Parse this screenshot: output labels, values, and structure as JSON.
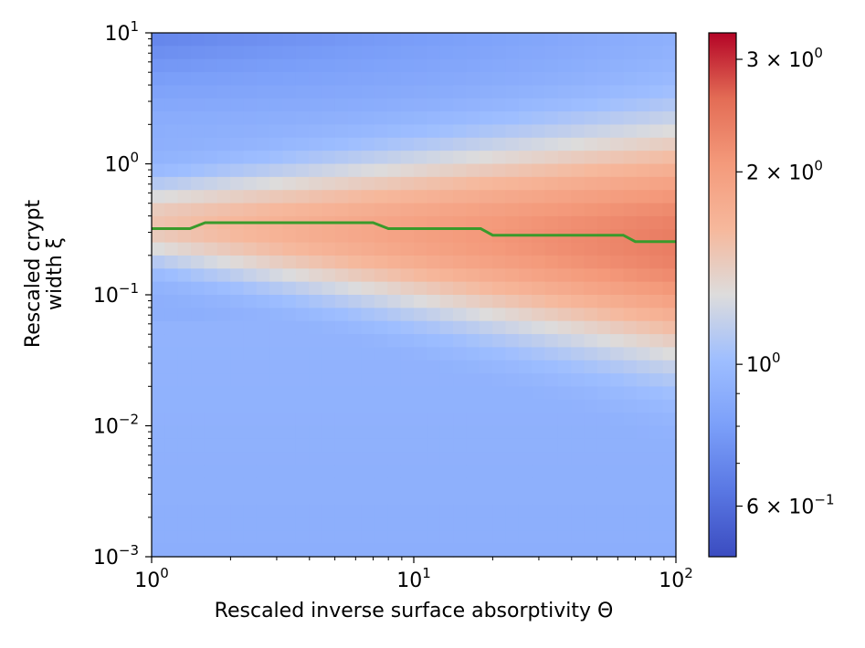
{
  "chart_data": {
    "type": "heatmap",
    "title": "",
    "xlabel": "Rescaled inverse surface absorptivity Θ",
    "ylabel_line1": "Rescaled crypt",
    "ylabel_line2": "width ξ",
    "x_scale": "log",
    "y_scale": "log",
    "xlim": [
      1,
      100
    ],
    "ylim": [
      0.001,
      10
    ],
    "x_ticks": [
      {
        "value": 1,
        "mantissa": "10",
        "exponent": "0"
      },
      {
        "value": 10,
        "mantissa": "10",
        "exponent": "1"
      },
      {
        "value": 100,
        "mantissa": "10",
        "exponent": "2"
      }
    ],
    "y_ticks": [
      {
        "value": 0.001,
        "mantissa": "10",
        "exponent": "−3"
      },
      {
        "value": 0.01,
        "mantissa": "10",
        "exponent": "−2"
      },
      {
        "value": 0.1,
        "mantissa": "10",
        "exponent": "−1"
      },
      {
        "value": 1,
        "mantissa": "10",
        "exponent": "0"
      },
      {
        "value": 10,
        "mantissa": "10",
        "exponent": "1"
      }
    ],
    "grid": false,
    "colormap": "coolwarm",
    "colorbar": {
      "scale": "log",
      "range": [
        0.5,
        3.3
      ],
      "ticks": [
        {
          "value": 0.6,
          "label": "6 × 10",
          "exponent": "−1"
        },
        {
          "value": 1,
          "label": "10",
          "exponent": "0"
        },
        {
          "value": 2,
          "label": "2 × 10",
          "exponent": "0"
        },
        {
          "value": 3,
          "label": "3 × 10",
          "exponent": "0"
        }
      ]
    },
    "optimal_line": {
      "color": "#3a9a2b",
      "theta": [
        1,
        1.4,
        1.6,
        7,
        8,
        18,
        20,
        63,
        70,
        100
      ],
      "xi": [
        0.32,
        0.32,
        0.355,
        0.355,
        0.32,
        0.32,
        0.285,
        0.285,
        0.255,
        0.255
      ]
    }
  }
}
